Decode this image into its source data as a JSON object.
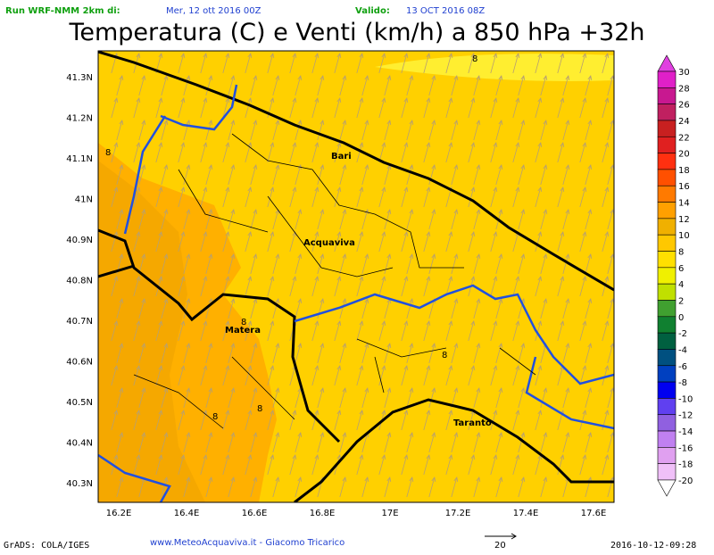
{
  "header": {
    "run_label": "Run WRF-NMM 2km di:",
    "run_date": "Mer, 12 ott 2016 00Z",
    "valid_label": "Valido:",
    "valid_date": "13 OCT 2016 08Z",
    "title": "Temperatura (C) e Venti (km/h) a 850 hPa +32h"
  },
  "map": {
    "lat_labels": [
      "41.3N",
      "41.2N",
      "41.1N",
      "41N",
      "40.9N",
      "40.8N",
      "40.7N",
      "40.6N",
      "40.5N",
      "40.4N",
      "40.3N"
    ],
    "lon_labels": [
      "16.2E",
      "16.4E",
      "16.6E",
      "16.8E",
      "17E",
      "17.2E",
      "17.4E",
      "17.6E"
    ],
    "cities": [
      "Bari",
      "Acquaviva",
      "Matera",
      "Taranto"
    ],
    "contour_labels": [
      "8",
      "8",
      "8",
      "8",
      "8",
      "8"
    ]
  },
  "colorbar": {
    "levels": [
      30,
      28,
      26,
      24,
      22,
      20,
      18,
      16,
      14,
      12,
      10,
      8,
      6,
      4,
      2,
      0,
      -2,
      -4,
      -6,
      -8,
      -10,
      -12,
      -14,
      -16,
      -18,
      -20
    ],
    "colors": [
      "#e040e0",
      "#e020c8",
      "#c81890",
      "#c02060",
      "#c82020",
      "#e02020",
      "#ff3010",
      "#ff5000",
      "#ff7a00",
      "#ffa000",
      "#f0b000",
      "#ffc800",
      "#ffe000",
      "#f0f000",
      "#c0e000",
      "#40a030",
      "#108030",
      "#006040",
      "#005080",
      "#0040c0",
      "#0000f0",
      "#6040f0",
      "#9060e0",
      "#c080f0",
      "#e0a0f0",
      "#f0c0f8",
      "#ffffff"
    ]
  },
  "footer": {
    "grads": "GrADS: COLA/IGES",
    "credits": "www.MeteoAcquaviva.it - Giacomo Tricarico",
    "wind_ref": "20",
    "timestamp": "2016-10-12-09:28"
  }
}
